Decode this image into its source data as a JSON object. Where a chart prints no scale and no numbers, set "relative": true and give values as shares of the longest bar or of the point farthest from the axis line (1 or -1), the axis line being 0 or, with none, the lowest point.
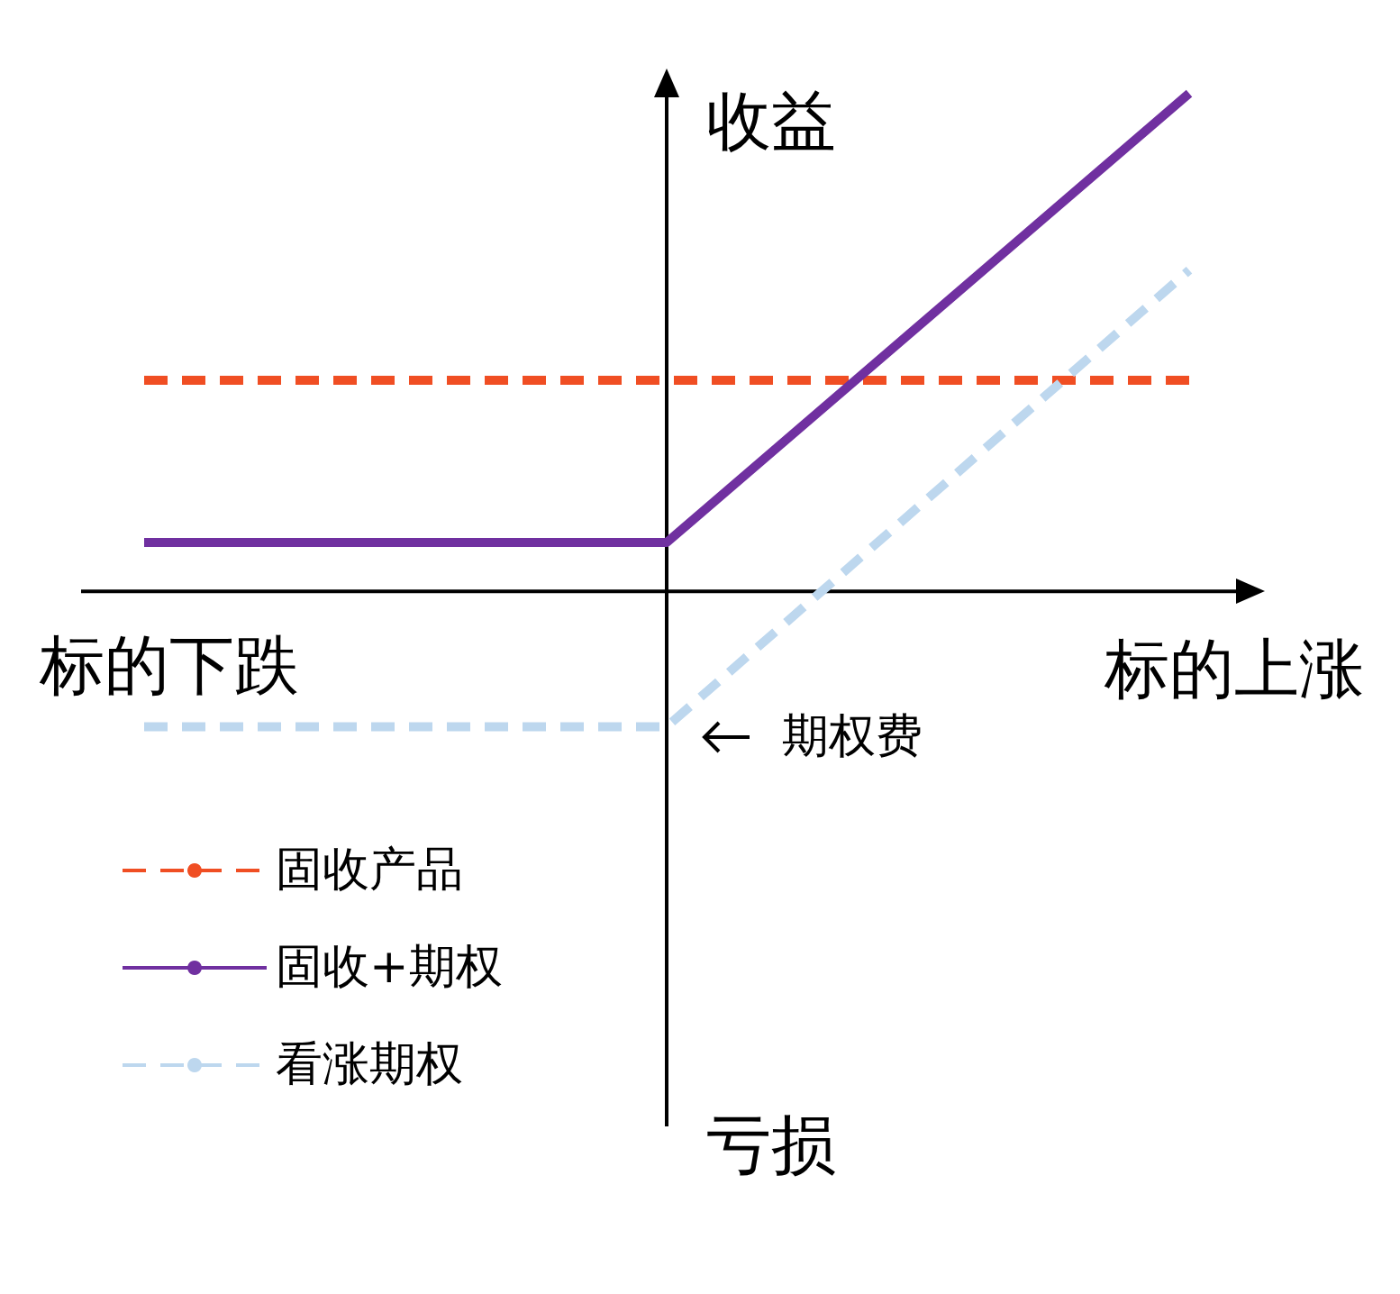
{
  "chart_data": {
    "type": "line",
    "relative": true,
    "categories": [
      null,
      null,
      null
    ],
    "series": [
      {
        "name": "固收产品",
        "color": "#f04e23",
        "line_style": "dashed",
        "values": [
          0.424,
          0.424,
          0.424
        ]
      },
      {
        "name": "固收+期权",
        "color": "#7030a0",
        "line_style": "solid",
        "values": [
          0.098,
          0.098,
          1
        ]
      },
      {
        "name": "看涨期权",
        "color": "#bdd7ee",
        "line_style": "dashed",
        "values": [
          -0.272,
          -0.272,
          0.645
        ]
      }
    ],
    "annotations": [
      "收益",
      "亏损",
      "标的下跌",
      "标的上涨",
      "期权费"
    ],
    "legend": "bottom left",
    "grid": false,
    "marker": "none"
  }
}
